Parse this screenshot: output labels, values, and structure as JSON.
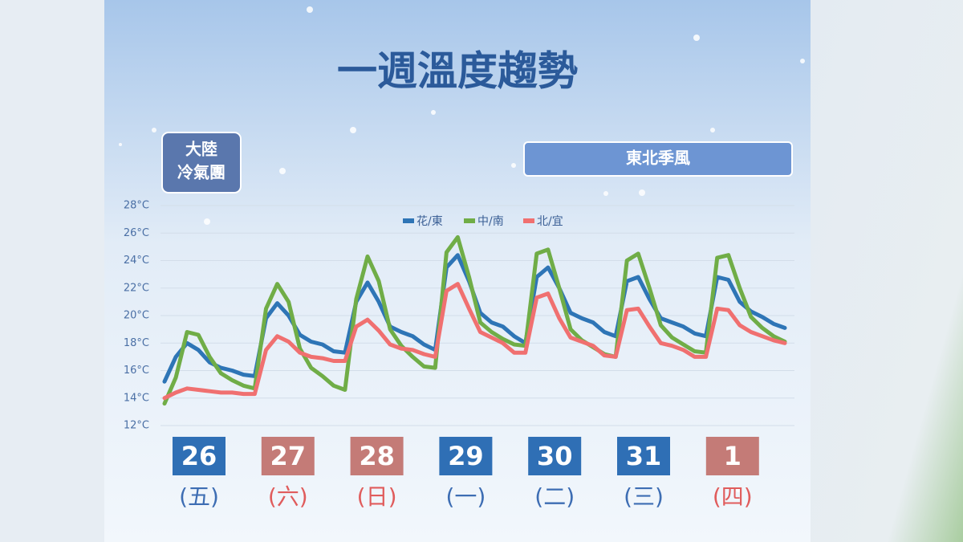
{
  "chart_data": {
    "type": "line",
    "title": "一週溫度趨勢",
    "annotations": {
      "left_box": [
        "大陸",
        "冷氣團"
      ],
      "right_box": "東北季風"
    },
    "ylim": [
      12,
      28
    ],
    "yticks": [
      {
        "value": 12,
        "label": "12°C"
      },
      {
        "value": 14,
        "label": "14°C"
      },
      {
        "value": 16,
        "label": "16°C"
      },
      {
        "value": 18,
        "label": "18°C"
      },
      {
        "value": 20,
        "label": "20°C"
      },
      {
        "value": 22,
        "label": "22°C"
      },
      {
        "value": 24,
        "label": "24°C"
      },
      {
        "value": 26,
        "label": "26°C"
      },
      {
        "value": 28,
        "label": "28°C"
      }
    ],
    "grid": true,
    "legend": "top",
    "days": [
      {
        "day": "26",
        "weekday": "(五)",
        "color": "#2f6fb5",
        "label_color": "#3d6db3"
      },
      {
        "day": "27",
        "weekday": "(六)",
        "color": "#c47b77",
        "label_color": "#e05c5c"
      },
      {
        "day": "28",
        "weekday": "(日)",
        "color": "#c47b77",
        "label_color": "#e05c5c"
      },
      {
        "day": "29",
        "weekday": "(一)",
        "color": "#2f6fb5",
        "label_color": "#3d6db3"
      },
      {
        "day": "30",
        "weekday": "(二)",
        "color": "#2f6fb5",
        "label_color": "#3d6db3"
      },
      {
        "day": "31",
        "weekday": "(三)",
        "color": "#2f6fb5",
        "label_color": "#3d6db3"
      },
      {
        "day": "1",
        "weekday": "(四)",
        "color": "#c47b77",
        "label_color": "#e05c5c"
      }
    ],
    "series": [
      {
        "name": "花/東",
        "color": "#2e75b6",
        "values": [
          15.2,
          17.0,
          18.0,
          17.5,
          16.6,
          16.2,
          16.0,
          15.7,
          15.6,
          19.8,
          20.9,
          20.0,
          18.6,
          18.1,
          17.9,
          17.4,
          17.3,
          21.0,
          22.4,
          21.0,
          19.2,
          18.8,
          18.5,
          17.9,
          17.5,
          23.5,
          24.4,
          22.5,
          20.2,
          19.5,
          19.2,
          18.5,
          18.0,
          22.8,
          23.5,
          22.0,
          20.2,
          19.8,
          19.5,
          18.8,
          18.5,
          22.5,
          22.8,
          21.2,
          19.8,
          19.5,
          19.2,
          18.7,
          18.5,
          22.8,
          22.6,
          21.0,
          20.3,
          19.9,
          19.4,
          19.1
        ]
      },
      {
        "name": "中/南",
        "color": "#70ad47",
        "values": [
          13.6,
          15.5,
          18.8,
          18.6,
          17.0,
          15.8,
          15.3,
          14.9,
          14.7,
          20.5,
          22.3,
          21.0,
          17.6,
          16.2,
          15.6,
          14.9,
          14.6,
          21.2,
          24.3,
          22.5,
          19.0,
          17.8,
          17.0,
          16.3,
          16.2,
          24.6,
          25.7,
          22.8,
          19.5,
          18.8,
          18.3,
          17.9,
          17.8,
          24.5,
          24.8,
          22.0,
          19.0,
          18.2,
          17.7,
          17.2,
          17.0,
          24.0,
          24.5,
          22.0,
          19.3,
          18.4,
          17.9,
          17.4,
          17.3,
          24.2,
          24.4,
          22.0,
          19.9,
          19.1,
          18.5,
          18.1
        ]
      },
      {
        "name": "北/宜",
        "color": "#f07070",
        "values": [
          14.0,
          14.4,
          14.7,
          14.6,
          14.5,
          14.4,
          14.4,
          14.3,
          14.3,
          17.5,
          18.5,
          18.1,
          17.3,
          17.0,
          16.9,
          16.7,
          16.7,
          19.2,
          19.7,
          18.9,
          17.9,
          17.6,
          17.5,
          17.2,
          17.0,
          21.8,
          22.3,
          20.5,
          18.8,
          18.4,
          18.0,
          17.3,
          17.3,
          21.3,
          21.6,
          19.8,
          18.4,
          18.1,
          17.8,
          17.1,
          17.0,
          20.4,
          20.5,
          19.2,
          18.0,
          17.8,
          17.5,
          17.0,
          17.0,
          20.5,
          20.4,
          19.3,
          18.8,
          18.5,
          18.2,
          18.0
        ]
      }
    ]
  }
}
